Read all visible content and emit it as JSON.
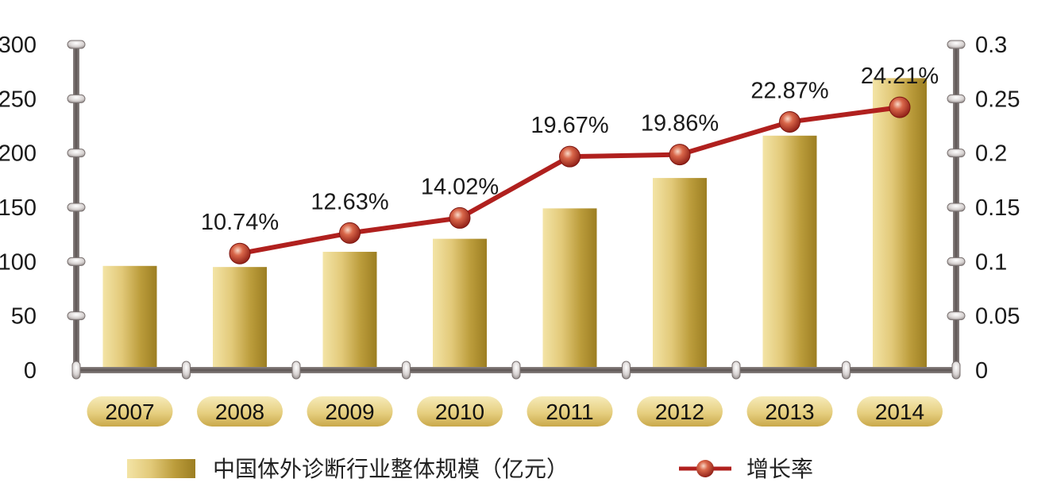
{
  "chart_data": {
    "type": "bar",
    "categories": [
      "2007",
      "2008",
      "2009",
      "2010",
      "2011",
      "2012",
      "2013",
      "2014"
    ],
    "series": [
      {
        "name": "中国体外诊断行业整体规模（亿元）",
        "type": "bar",
        "axis": "left",
        "values": [
          96,
          95,
          109,
          121,
          149,
          177,
          216,
          269
        ]
      },
      {
        "name": "增长率",
        "type": "line",
        "axis": "right",
        "values": [
          null,
          0.1074,
          0.1263,
          0.1402,
          0.1967,
          0.1986,
          0.2287,
          0.2421
        ],
        "labels": [
          "",
          "10.74%",
          "12.63%",
          "14.02%",
          "19.67%",
          "19.86%",
          "22.87%",
          "24.21%"
        ]
      }
    ],
    "y_left": {
      "ylim": [
        0,
        300
      ],
      "ticks": [
        "0",
        "50",
        "100",
        "150",
        "200",
        "250",
        "300"
      ]
    },
    "y_right": {
      "ylim": [
        0,
        0.3
      ],
      "ticks": [
        "0",
        "0.05",
        "0.1",
        "0.15",
        "0.2",
        "0.25",
        "0.3"
      ]
    },
    "legend_position": "bottom",
    "colors": {
      "bar": "#c9a83c",
      "line": "#b0201e",
      "axis": "#6b6362"
    }
  }
}
